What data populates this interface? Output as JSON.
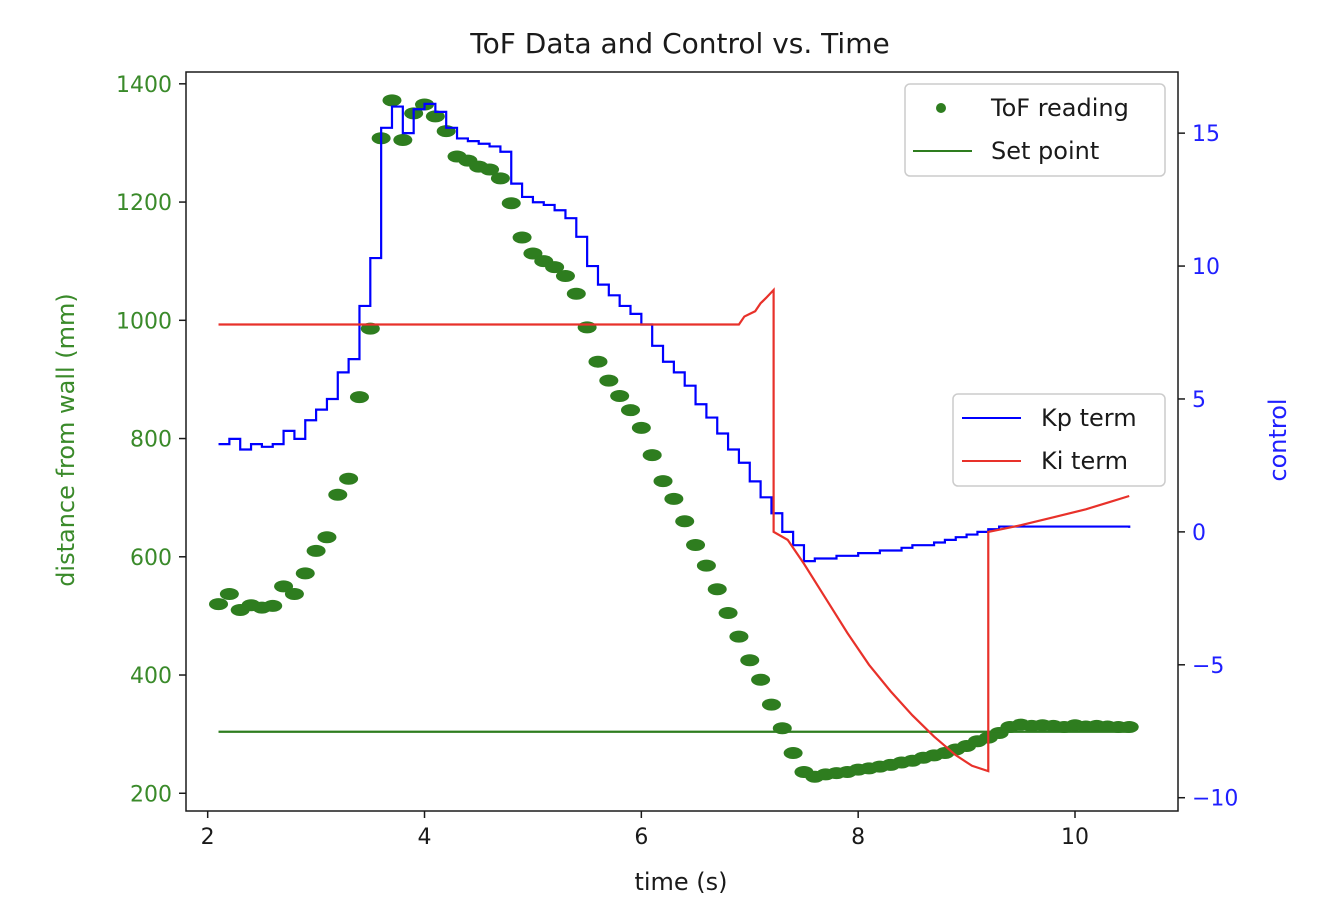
{
  "chart_data": {
    "type": "line",
    "title": "ToF Data and Control vs. Time",
    "xlabel": "time (s)",
    "ylabel_left": "distance from wall (mm)",
    "ylabel_right": "control",
    "xlim": [
      1.8,
      10.95
    ],
    "ylim_left": [
      170,
      1420
    ],
    "ylim_right": [
      -10.5,
      17.3
    ],
    "xticks": [
      2,
      4,
      6,
      8,
      10
    ],
    "yticks_left": [
      200,
      400,
      600,
      800,
      1000,
      1200,
      1400
    ],
    "yticks_right": [
      -10,
      -5,
      0,
      5,
      10,
      15
    ],
    "colors": {
      "left_axis": "#3a8a2a",
      "right_axis": "#1f1fff",
      "tof": "#2e7d1f",
      "setpoint": "#2e7d1f",
      "kp": "#0000ff",
      "ki": "#e8312a",
      "text": "#1a1a1a"
    },
    "legend_top_right": [
      {
        "label": "ToF reading",
        "marker": "dot",
        "color": "#2e7d1f"
      },
      {
        "label": "Set point",
        "marker": "line",
        "color": "#2e7d1f"
      }
    ],
    "legend_center_right": [
      {
        "label": "Kp term",
        "marker": "line",
        "color": "#0000ff"
      },
      {
        "label": "Ki term",
        "marker": "line",
        "color": "#e8312a"
      }
    ],
    "series": [
      {
        "name": "ToF reading",
        "axis": "left",
        "style": "scatter",
        "points": [
          [
            2.1,
            520
          ],
          [
            2.2,
            537
          ],
          [
            2.3,
            510
          ],
          [
            2.4,
            518
          ],
          [
            2.5,
            514
          ],
          [
            2.6,
            517
          ],
          [
            2.7,
            550
          ],
          [
            2.8,
            537
          ],
          [
            2.9,
            572
          ],
          [
            3.0,
            610
          ],
          [
            3.1,
            633
          ],
          [
            3.2,
            705
          ],
          [
            3.3,
            732
          ],
          [
            3.4,
            870
          ],
          [
            3.5,
            986
          ],
          [
            3.6,
            1308
          ],
          [
            3.7,
            1372
          ],
          [
            3.8,
            1305
          ],
          [
            3.9,
            1350
          ],
          [
            4.0,
            1365
          ],
          [
            4.1,
            1345
          ],
          [
            4.2,
            1320
          ],
          [
            4.3,
            1277
          ],
          [
            4.4,
            1270
          ],
          [
            4.5,
            1260
          ],
          [
            4.6,
            1255
          ],
          [
            4.7,
            1240
          ],
          [
            4.8,
            1198
          ],
          [
            4.9,
            1140
          ],
          [
            5.0,
            1113
          ],
          [
            5.1,
            1100
          ],
          [
            5.2,
            1090
          ],
          [
            5.3,
            1075
          ],
          [
            5.4,
            1045
          ],
          [
            5.5,
            988
          ],
          [
            5.6,
            930
          ],
          [
            5.7,
            898
          ],
          [
            5.8,
            872
          ],
          [
            5.9,
            848
          ],
          [
            6.0,
            818
          ],
          [
            6.1,
            772
          ],
          [
            6.2,
            728
          ],
          [
            6.3,
            698
          ],
          [
            6.4,
            660
          ],
          [
            6.5,
            620
          ],
          [
            6.6,
            585
          ],
          [
            6.7,
            545
          ],
          [
            6.8,
            505
          ],
          [
            6.9,
            465
          ],
          [
            7.0,
            425
          ],
          [
            7.1,
            392
          ],
          [
            7.2,
            350
          ],
          [
            7.3,
            310
          ],
          [
            7.4,
            268
          ],
          [
            7.5,
            236
          ],
          [
            7.6,
            228
          ],
          [
            7.7,
            232
          ],
          [
            7.8,
            234
          ],
          [
            7.9,
            236
          ],
          [
            8.0,
            240
          ],
          [
            8.1,
            242
          ],
          [
            8.2,
            245
          ],
          [
            8.3,
            248
          ],
          [
            8.4,
            252
          ],
          [
            8.5,
            255
          ],
          [
            8.6,
            260
          ],
          [
            8.7,
            264
          ],
          [
            8.8,
            268
          ],
          [
            8.9,
            274
          ],
          [
            9.0,
            280
          ],
          [
            9.1,
            288
          ],
          [
            9.2,
            294
          ],
          [
            9.3,
            302
          ],
          [
            9.4,
            312
          ],
          [
            9.5,
            316
          ],
          [
            9.6,
            314
          ],
          [
            9.7,
            315
          ],
          [
            9.8,
            314
          ],
          [
            9.9,
            312
          ],
          [
            10.0,
            315
          ],
          [
            10.1,
            313
          ],
          [
            10.2,
            314
          ],
          [
            10.3,
            313
          ],
          [
            10.4,
            312
          ],
          [
            10.5,
            312
          ]
        ]
      },
      {
        "name": "Set point",
        "axis": "left",
        "style": "line",
        "points": [
          [
            2.1,
            304
          ],
          [
            10.5,
            304
          ]
        ]
      },
      {
        "name": "Kp term",
        "axis": "right",
        "style": "step",
        "points": [
          [
            2.1,
            3.3
          ],
          [
            2.2,
            3.5
          ],
          [
            2.3,
            3.1
          ],
          [
            2.4,
            3.3
          ],
          [
            2.5,
            3.2
          ],
          [
            2.6,
            3.3
          ],
          [
            2.7,
            3.8
          ],
          [
            2.8,
            3.5
          ],
          [
            2.9,
            4.2
          ],
          [
            3.0,
            4.6
          ],
          [
            3.1,
            5.0
          ],
          [
            3.2,
            6.0
          ],
          [
            3.3,
            6.5
          ],
          [
            3.4,
            8.5
          ],
          [
            3.5,
            10.3
          ],
          [
            3.6,
            15.2
          ],
          [
            3.7,
            16.0
          ],
          [
            3.8,
            15.0
          ],
          [
            3.9,
            15.9
          ],
          [
            4.0,
            16.1
          ],
          [
            4.1,
            15.8
          ],
          [
            4.2,
            15.2
          ],
          [
            4.3,
            14.8
          ],
          [
            4.4,
            14.7
          ],
          [
            4.5,
            14.6
          ],
          [
            4.6,
            14.5
          ],
          [
            4.7,
            14.3
          ],
          [
            4.8,
            13.1
          ],
          [
            4.9,
            12.6
          ],
          [
            5.0,
            12.4
          ],
          [
            5.1,
            12.3
          ],
          [
            5.2,
            12.1
          ],
          [
            5.3,
            11.8
          ],
          [
            5.4,
            11.1
          ],
          [
            5.5,
            10.0
          ],
          [
            5.6,
            9.3
          ],
          [
            5.7,
            8.9
          ],
          [
            5.8,
            8.5
          ],
          [
            5.9,
            8.2
          ],
          [
            6.0,
            7.8
          ],
          [
            6.1,
            7.0
          ],
          [
            6.2,
            6.4
          ],
          [
            6.3,
            6.0
          ],
          [
            6.4,
            5.5
          ],
          [
            6.5,
            4.8
          ],
          [
            6.6,
            4.3
          ],
          [
            6.7,
            3.7
          ],
          [
            6.8,
            3.1
          ],
          [
            6.9,
            2.6
          ],
          [
            7.0,
            1.9
          ],
          [
            7.1,
            1.3
          ],
          [
            7.2,
            0.7
          ],
          [
            7.3,
            0.0
          ],
          [
            7.4,
            -0.5
          ],
          [
            7.5,
            -1.1
          ],
          [
            7.6,
            -1.0
          ],
          [
            7.7,
            -1.0
          ],
          [
            7.8,
            -0.9
          ],
          [
            7.9,
            -0.9
          ],
          [
            8.0,
            -0.8
          ],
          [
            8.1,
            -0.8
          ],
          [
            8.2,
            -0.7
          ],
          [
            8.3,
            -0.7
          ],
          [
            8.4,
            -0.6
          ],
          [
            8.5,
            -0.5
          ],
          [
            8.6,
            -0.5
          ],
          [
            8.7,
            -0.4
          ],
          [
            8.8,
            -0.3
          ],
          [
            8.9,
            -0.2
          ],
          [
            9.0,
            -0.1
          ],
          [
            9.1,
            0.0
          ],
          [
            9.2,
            0.1
          ],
          [
            9.3,
            0.2
          ],
          [
            9.4,
            0.2
          ],
          [
            9.5,
            0.2
          ],
          [
            9.6,
            0.2
          ],
          [
            9.7,
            0.2
          ],
          [
            9.8,
            0.2
          ],
          [
            9.9,
            0.2
          ],
          [
            10.0,
            0.2
          ],
          [
            10.1,
            0.2
          ],
          [
            10.2,
            0.2
          ],
          [
            10.3,
            0.2
          ],
          [
            10.4,
            0.2
          ],
          [
            10.5,
            0.15
          ]
        ]
      },
      {
        "name": "Ki term",
        "axis": "right",
        "style": "line",
        "points": [
          [
            2.1,
            7.8
          ],
          [
            6.9,
            7.8
          ],
          [
            6.95,
            8.1
          ],
          [
            7.0,
            8.2
          ],
          [
            7.05,
            8.3
          ],
          [
            7.1,
            8.6
          ],
          [
            7.15,
            8.8
          ],
          [
            7.22,
            9.1
          ],
          [
            7.22,
            0.0
          ],
          [
            7.35,
            -0.3
          ],
          [
            7.5,
            -1.2
          ],
          [
            7.7,
            -2.5
          ],
          [
            7.9,
            -3.8
          ],
          [
            8.1,
            -5.0
          ],
          [
            8.3,
            -6.0
          ],
          [
            8.5,
            -6.9
          ],
          [
            8.7,
            -7.7
          ],
          [
            8.9,
            -8.4
          ],
          [
            9.05,
            -8.8
          ],
          [
            9.2,
            -9.0
          ],
          [
            9.2,
            0.0
          ],
          [
            9.5,
            0.25
          ],
          [
            9.8,
            0.55
          ],
          [
            10.1,
            0.85
          ],
          [
            10.3,
            1.1
          ],
          [
            10.5,
            1.35
          ]
        ]
      }
    ]
  }
}
